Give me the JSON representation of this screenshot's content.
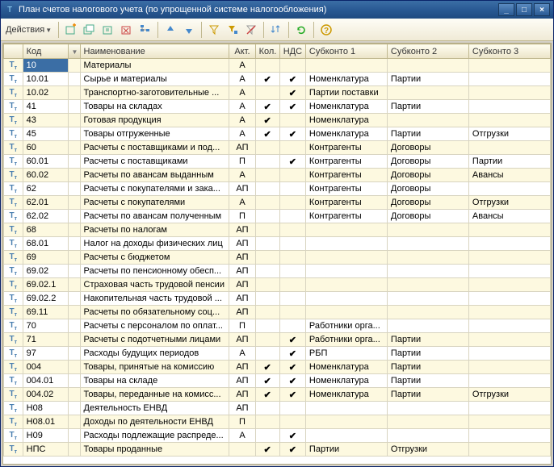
{
  "window": {
    "title": "План счетов налогового учета (по упрощенной системе налогообложения)"
  },
  "toolbar": {
    "actions_label": "Действия"
  },
  "columns": {
    "code": "Код",
    "name": "Наименование",
    "akt": "Акт.",
    "kol": "Кол.",
    "nds": "НДС",
    "sub1": "Субконто 1",
    "sub2": "Субконто 2",
    "sub3": "Субконто 3"
  },
  "rows": [
    {
      "code": "10",
      "name": "Материалы",
      "akt": "А",
      "kol": false,
      "nds": false,
      "s1": "",
      "s2": "",
      "s3": "",
      "sel": true
    },
    {
      "code": "10.01",
      "name": "Сырье и материалы",
      "akt": "А",
      "kol": true,
      "nds": true,
      "s1": "Номенклатура",
      "s2": "Партии",
      "s3": ""
    },
    {
      "code": "10.02",
      "name": "Транспортно-заготовительные ...",
      "akt": "А",
      "kol": false,
      "nds": true,
      "s1": "Партии поставки",
      "s2": "",
      "s3": ""
    },
    {
      "code": "41",
      "name": "Товары на складах",
      "akt": "А",
      "kol": true,
      "nds": true,
      "s1": "Номенклатура",
      "s2": "Партии",
      "s3": ""
    },
    {
      "code": "43",
      "name": "Готовая продукция",
      "akt": "А",
      "kol": true,
      "nds": false,
      "s1": "Номенклатура",
      "s2": "",
      "s3": ""
    },
    {
      "code": "45",
      "name": "Товары отгруженные",
      "akt": "А",
      "kol": true,
      "nds": true,
      "s1": "Номенклатура",
      "s2": "Партии",
      "s3": "Отгрузки"
    },
    {
      "code": "60",
      "name": "Расчеты с поставщиками и под...",
      "akt": "АП",
      "kol": false,
      "nds": false,
      "s1": "Контрагенты",
      "s2": "Договоры",
      "s3": ""
    },
    {
      "code": "60.01",
      "name": "Расчеты с поставщиками",
      "akt": "П",
      "kol": false,
      "nds": true,
      "s1": "Контрагенты",
      "s2": "Договоры",
      "s3": "Партии"
    },
    {
      "code": "60.02",
      "name": "Расчеты по авансам выданным",
      "akt": "А",
      "kol": false,
      "nds": false,
      "s1": "Контрагенты",
      "s2": "Договоры",
      "s3": "Авансы"
    },
    {
      "code": "62",
      "name": "Расчеты с покупателями и зака...",
      "akt": "АП",
      "kol": false,
      "nds": false,
      "s1": "Контрагенты",
      "s2": "Договоры",
      "s3": ""
    },
    {
      "code": "62.01",
      "name": "Расчеты с покупателями",
      "akt": "А",
      "kol": false,
      "nds": false,
      "s1": "Контрагенты",
      "s2": "Договоры",
      "s3": "Отгрузки"
    },
    {
      "code": "62.02",
      "name": "Расчеты по авансам полученным",
      "akt": "П",
      "kol": false,
      "nds": false,
      "s1": "Контрагенты",
      "s2": "Договоры",
      "s3": "Авансы"
    },
    {
      "code": "68",
      "name": "Расчеты по налогам",
      "akt": "АП",
      "kol": false,
      "nds": false,
      "s1": "",
      "s2": "",
      "s3": ""
    },
    {
      "code": "68.01",
      "name": "Налог на доходы физических лиц",
      "akt": "АП",
      "kol": false,
      "nds": false,
      "s1": "",
      "s2": "",
      "s3": ""
    },
    {
      "code": "69",
      "name": "Расчеты с бюджетом",
      "akt": "АП",
      "kol": false,
      "nds": false,
      "s1": "",
      "s2": "",
      "s3": ""
    },
    {
      "code": "69.02",
      "name": "Расчеты по пенсионному обесп...",
      "akt": "АП",
      "kol": false,
      "nds": false,
      "s1": "",
      "s2": "",
      "s3": ""
    },
    {
      "code": "69.02.1",
      "name": "Страховая часть трудовой пенсии",
      "akt": "АП",
      "kol": false,
      "nds": false,
      "s1": "",
      "s2": "",
      "s3": ""
    },
    {
      "code": "69.02.2",
      "name": "Накопительная часть трудовой ...",
      "akt": "АП",
      "kol": false,
      "nds": false,
      "s1": "",
      "s2": "",
      "s3": ""
    },
    {
      "code": "69.11",
      "name": "Расчеты по обязательному соц...",
      "akt": "АП",
      "kol": false,
      "nds": false,
      "s1": "",
      "s2": "",
      "s3": ""
    },
    {
      "code": "70",
      "name": "Расчеты с персоналом по оплат...",
      "akt": "П",
      "kol": false,
      "nds": false,
      "s1": "Работники орга...",
      "s2": "",
      "s3": ""
    },
    {
      "code": "71",
      "name": "Расчеты с подотчетными лицами",
      "akt": "АП",
      "kol": false,
      "nds": true,
      "s1": "Работники орга...",
      "s2": "Партии",
      "s3": ""
    },
    {
      "code": "97",
      "name": "Расходы будущих периодов",
      "akt": "А",
      "kol": false,
      "nds": true,
      "s1": "РБП",
      "s2": "Партии",
      "s3": ""
    },
    {
      "code": "004",
      "name": "Товары, принятые на комиссию",
      "akt": "АП",
      "kol": true,
      "nds": true,
      "s1": "Номенклатура",
      "s2": "Партии",
      "s3": ""
    },
    {
      "code": "004.01",
      "name": "Товары на складе",
      "akt": "АП",
      "kol": true,
      "nds": true,
      "s1": "Номенклатура",
      "s2": "Партии",
      "s3": ""
    },
    {
      "code": "004.02",
      "name": "Товары, переданные на комисс...",
      "akt": "АП",
      "kol": true,
      "nds": true,
      "s1": "Номенклатура",
      "s2": "Партии",
      "s3": "Отгрузки"
    },
    {
      "code": "Н08",
      "name": "Деятельность ЕНВД",
      "akt": "АП",
      "kol": false,
      "nds": false,
      "s1": "",
      "s2": "",
      "s3": ""
    },
    {
      "code": "Н08.01",
      "name": "Доходы по деятельности ЕНВД",
      "akt": "П",
      "kol": false,
      "nds": false,
      "s1": "",
      "s2": "",
      "s3": ""
    },
    {
      "code": "Н09",
      "name": "Расходы подлежащие распреде...",
      "akt": "А",
      "kol": false,
      "nds": true,
      "s1": "",
      "s2": "",
      "s3": ""
    },
    {
      "code": "НПС",
      "name": "Товары проданные",
      "akt": "",
      "kol": true,
      "nds": true,
      "s1": "Партии",
      "s2": "Отгрузки",
      "s3": ""
    }
  ]
}
